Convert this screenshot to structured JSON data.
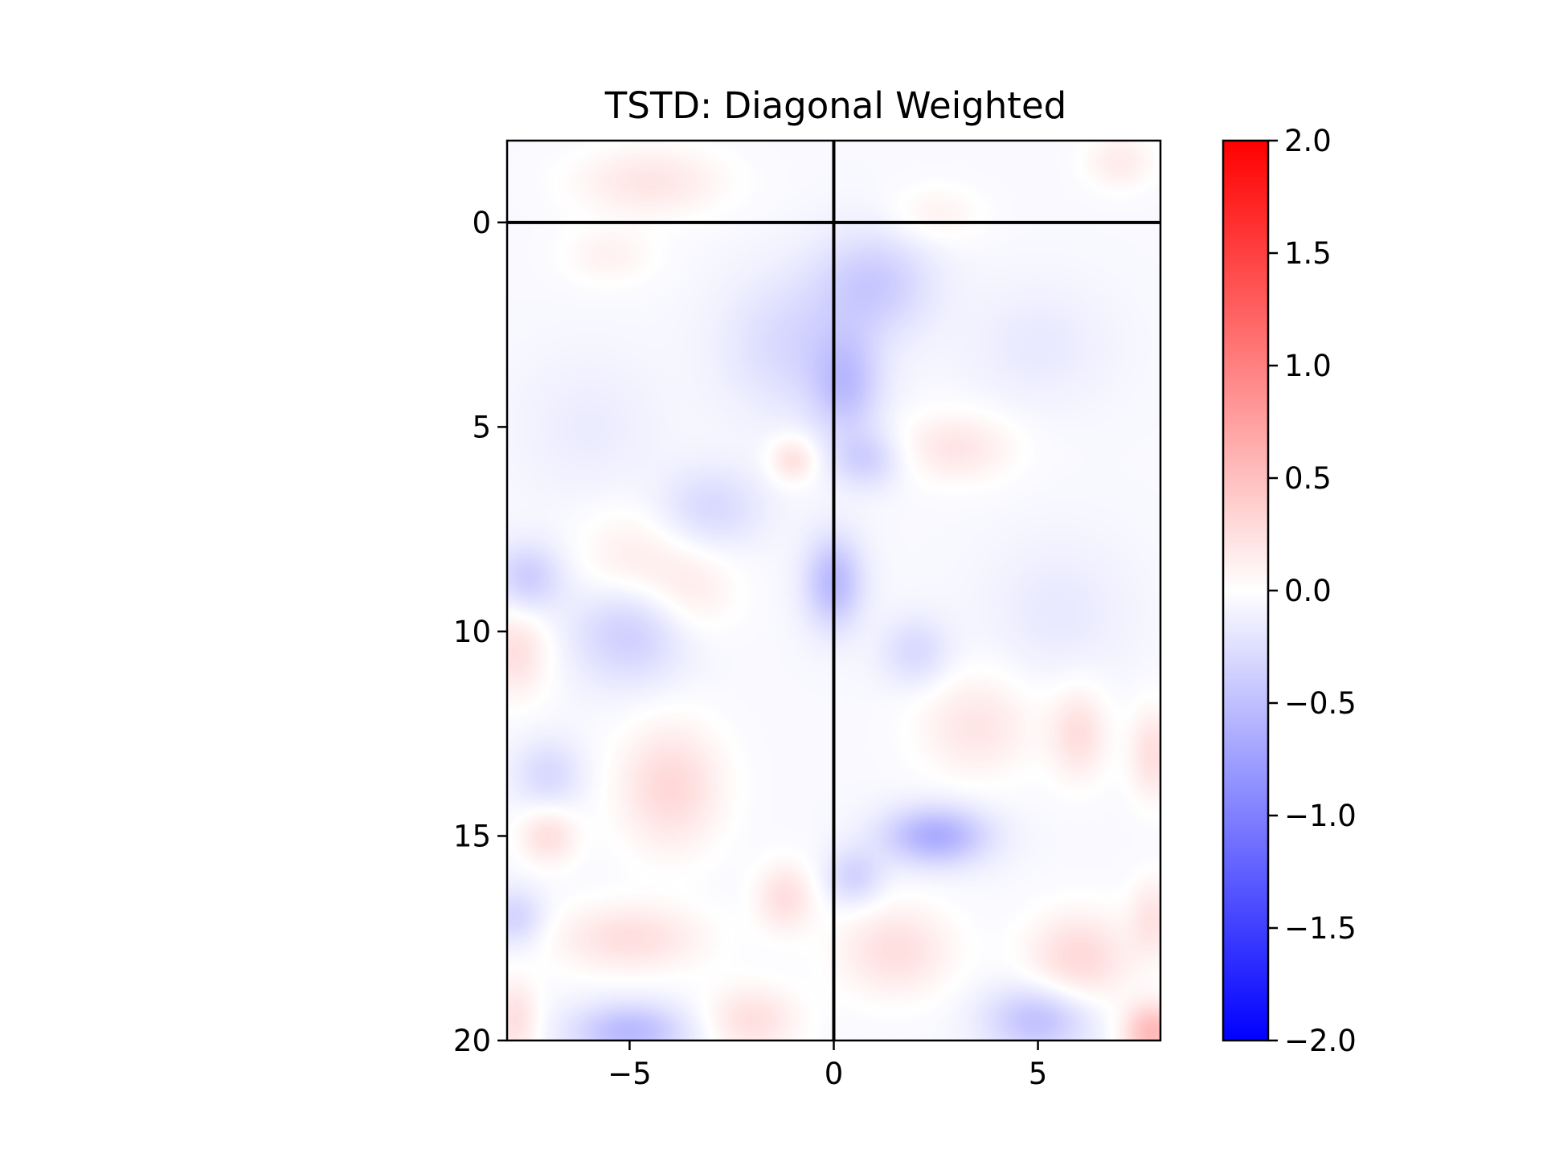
{
  "chart_data": {
    "type": "heatmap",
    "title": "TSTD: Diagonal Weighted",
    "xlabel": "",
    "ylabel": "",
    "xlim": [
      -8,
      8
    ],
    "ylim": [
      20,
      -2
    ],
    "y_inverted": true,
    "x_ticks": [
      -5,
      0,
      5
    ],
    "x_tick_labels": [
      "−5",
      "0",
      "5"
    ],
    "y_ticks": [
      0,
      5,
      10,
      15,
      20
    ],
    "y_tick_labels": [
      "0",
      "5",
      "10",
      "15",
      "20"
    ],
    "colormap": "bwr",
    "vmin": -2.0,
    "vmax": 2.0,
    "colorbar_ticks": [
      2.0,
      1.5,
      1.0,
      0.5,
      0.0,
      -0.5,
      -1.0,
      -1.5,
      -2.0
    ],
    "colorbar_tick_labels": [
      "2.0",
      "1.5",
      "1.0",
      "0.5",
      "0.0",
      "−0.5",
      "−1.0",
      "−1.5",
      "−2.0"
    ],
    "reference_lines": [
      {
        "orientation": "horizontal",
        "y": 0,
        "color": "#000000"
      },
      {
        "orientation": "vertical",
        "x": 0,
        "color": "#000000"
      }
    ],
    "blobs": [
      {
        "x": -4.5,
        "y": -1.0,
        "sx": 1.3,
        "sy": 0.6,
        "v": 0.25
      },
      {
        "x": 7.0,
        "y": -1.5,
        "sx": 0.6,
        "sy": 0.5,
        "v": 0.2
      },
      {
        "x": 2.5,
        "y": -0.2,
        "sx": 0.8,
        "sy": 0.5,
        "v": 0.15
      },
      {
        "x": 1.0,
        "y": 1.5,
        "sx": 1.0,
        "sy": 0.9,
        "v": -0.35
      },
      {
        "x": -1.0,
        "y": 3.0,
        "sx": 1.2,
        "sy": 1.2,
        "v": -0.25
      },
      {
        "x": 0.3,
        "y": 4.0,
        "sx": 0.6,
        "sy": 0.9,
        "v": -0.4
      },
      {
        "x": -5.5,
        "y": 0.8,
        "sx": 0.8,
        "sy": 0.5,
        "v": 0.15
      },
      {
        "x": 3.0,
        "y": 5.5,
        "sx": 1.0,
        "sy": 0.6,
        "v": 0.25
      },
      {
        "x": -1.0,
        "y": 5.8,
        "sx": 0.4,
        "sy": 0.4,
        "v": 0.3
      },
      {
        "x": 0.8,
        "y": 5.8,
        "sx": 0.6,
        "sy": 0.5,
        "v": -0.3
      },
      {
        "x": -3.0,
        "y": 7.0,
        "sx": 0.9,
        "sy": 0.7,
        "v": -0.25
      },
      {
        "x": -5.0,
        "y": 8.3,
        "sx": 0.9,
        "sy": 0.9,
        "v": 0.2
      },
      {
        "x": -3.5,
        "y": 9.0,
        "sx": 0.8,
        "sy": 0.8,
        "v": 0.2
      },
      {
        "x": 0.0,
        "y": 8.8,
        "sx": 0.5,
        "sy": 0.8,
        "v": -0.5
      },
      {
        "x": -7.5,
        "y": 8.7,
        "sx": 0.6,
        "sy": 0.6,
        "v": -0.35
      },
      {
        "x": -5.0,
        "y": 10.0,
        "sx": 1.0,
        "sy": 0.9,
        "v": -0.35
      },
      {
        "x": -7.8,
        "y": 10.5,
        "sx": 0.6,
        "sy": 0.8,
        "v": 0.3
      },
      {
        "x": 2.0,
        "y": 10.5,
        "sx": 0.6,
        "sy": 0.6,
        "v": -0.25
      },
      {
        "x": 3.5,
        "y": 12.3,
        "sx": 1.0,
        "sy": 0.9,
        "v": 0.25
      },
      {
        "x": 6.0,
        "y": 12.5,
        "sx": 0.5,
        "sy": 0.8,
        "v": 0.3
      },
      {
        "x": 7.8,
        "y": 13.0,
        "sx": 0.4,
        "sy": 0.8,
        "v": 0.3
      },
      {
        "x": -4.0,
        "y": 13.8,
        "sx": 0.9,
        "sy": 1.1,
        "v": 0.35
      },
      {
        "x": -7.0,
        "y": 13.5,
        "sx": 0.6,
        "sy": 0.6,
        "v": -0.25
      },
      {
        "x": 2.5,
        "y": 15.0,
        "sx": 0.9,
        "sy": 0.5,
        "v": -0.6
      },
      {
        "x": -7.0,
        "y": 15.0,
        "sx": 0.5,
        "sy": 0.5,
        "v": 0.3
      },
      {
        "x": -1.2,
        "y": 16.5,
        "sx": 0.5,
        "sy": 0.6,
        "v": 0.3
      },
      {
        "x": 0.5,
        "y": 16.0,
        "sx": 0.5,
        "sy": 0.5,
        "v": -0.3
      },
      {
        "x": -5.0,
        "y": 17.5,
        "sx": 1.3,
        "sy": 0.6,
        "v": 0.3
      },
      {
        "x": 1.5,
        "y": 17.8,
        "sx": 1.0,
        "sy": 0.8,
        "v": 0.3
      },
      {
        "x": 6.0,
        "y": 18.0,
        "sx": 0.9,
        "sy": 0.8,
        "v": 0.35
      },
      {
        "x": 7.8,
        "y": 17.0,
        "sx": 0.4,
        "sy": 0.7,
        "v": 0.25
      },
      {
        "x": -7.8,
        "y": 17.0,
        "sx": 0.5,
        "sy": 0.5,
        "v": -0.3
      },
      {
        "x": -5.0,
        "y": 19.8,
        "sx": 1.0,
        "sy": 0.5,
        "v": -0.5
      },
      {
        "x": -2.0,
        "y": 19.5,
        "sx": 0.8,
        "sy": 0.6,
        "v": 0.3
      },
      {
        "x": 5.0,
        "y": 19.5,
        "sx": 0.9,
        "sy": 0.6,
        "v": -0.45
      },
      {
        "x": 7.8,
        "y": 19.8,
        "sx": 0.5,
        "sy": 0.5,
        "v": 0.6
      },
      {
        "x": -7.8,
        "y": 19.5,
        "sx": 0.4,
        "sy": 0.7,
        "v": 0.3
      },
      {
        "x": 5.0,
        "y": 3.0,
        "sx": 1.2,
        "sy": 1.0,
        "v": -0.12
      },
      {
        "x": -6.0,
        "y": 5.0,
        "sx": 1.2,
        "sy": 1.2,
        "v": -0.1
      },
      {
        "x": 5.5,
        "y": 9.5,
        "sx": 1.2,
        "sy": 1.2,
        "v": -0.12
      }
    ]
  }
}
